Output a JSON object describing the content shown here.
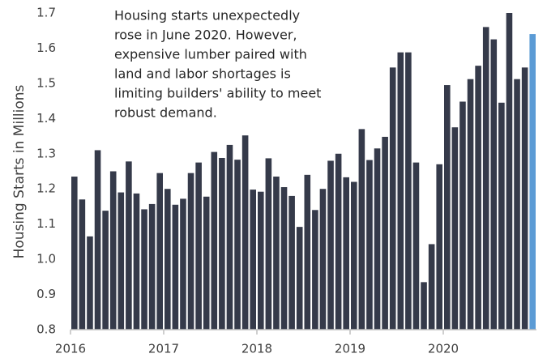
{
  "chart_data": {
    "type": "bar",
    "annotation": [
      "Housing starts unexpectedly",
      "rose in June 2020. However,",
      "expensive lumber paired with",
      "land and labor shortages is",
      "limiting builders' ability to meet",
      "robust demand."
    ],
    "ylabel": "Housing Starts in Millions",
    "categories": [
      "2016",
      null,
      null,
      null,
      null,
      null,
      null,
      null,
      null,
      null,
      null,
      null,
      "2017",
      null,
      null,
      null,
      null,
      null,
      null,
      null,
      null,
      null,
      null,
      null,
      "2018",
      null,
      null,
      null,
      null,
      null,
      null,
      null,
      null,
      null,
      null,
      null,
      "2019",
      null,
      null,
      null,
      null,
      null,
      null,
      null,
      null,
      null,
      null,
      null,
      "2020",
      null,
      null,
      null,
      null,
      null,
      null,
      null,
      null,
      null,
      null,
      null
    ],
    "values": [
      1.235,
      1.17,
      1.065,
      1.31,
      1.138,
      1.25,
      1.19,
      1.278,
      1.187,
      1.142,
      1.157,
      1.245,
      1.2,
      1.155,
      1.172,
      1.245,
      1.275,
      1.178,
      1.305,
      1.288,
      1.325,
      1.283,
      1.352,
      1.198,
      1.192,
      1.287,
      1.235,
      1.205,
      1.18,
      1.092,
      1.24,
      1.14,
      1.2,
      1.28,
      1.3,
      1.233,
      1.22,
      1.37,
      1.282,
      1.315,
      1.348,
      1.545,
      1.588,
      1.588,
      1.275,
      0.935,
      1.043,
      1.27,
      1.495,
      1.375,
      1.448,
      1.512,
      1.55,
      1.66,
      1.625,
      1.445,
      1.7,
      1.512,
      1.545,
      1.64
    ],
    "color": "#353a4a",
    "colors": [
      "#353a4a",
      "#353a4a",
      "#353a4a",
      "#353a4a",
      "#353a4a",
      "#353a4a",
      "#353a4a",
      "#353a4a",
      "#353a4a",
      "#353a4a",
      "#353a4a",
      "#353a4a",
      "#353a4a",
      "#353a4a",
      "#353a4a",
      "#353a4a",
      "#353a4a",
      "#353a4a",
      "#353a4a",
      "#353a4a",
      "#353a4a",
      "#353a4a",
      "#353a4a",
      "#353a4a",
      "#353a4a",
      "#353a4a",
      "#353a4a",
      "#353a4a",
      "#353a4a",
      "#353a4a",
      "#353a4a",
      "#353a4a",
      "#353a4a",
      "#353a4a",
      "#353a4a",
      "#353a4a",
      "#353a4a",
      "#353a4a",
      "#353a4a",
      "#353a4a",
      "#353a4a",
      "#353a4a",
      "#353a4a",
      "#353a4a",
      "#353a4a",
      "#353a4a",
      "#353a4a",
      "#353a4a",
      "#353a4a",
      "#353a4a",
      "#353a4a",
      "#353a4a",
      "#353a4a",
      "#353a4a",
      "#353a4a",
      "#353a4a",
      "#353a4a",
      "#353a4a",
      "#353a4a",
      "#5b9bd5"
    ],
    "ylim": [
      0.8,
      1.7
    ],
    "yticks": [
      0.8,
      0.9,
      {
        "value": 1,
        "label": "1.0"
      },
      1.1,
      1.2,
      1.3,
      1.4,
      1.5,
      1.6,
      1.7
    ],
    "grid": false
  }
}
